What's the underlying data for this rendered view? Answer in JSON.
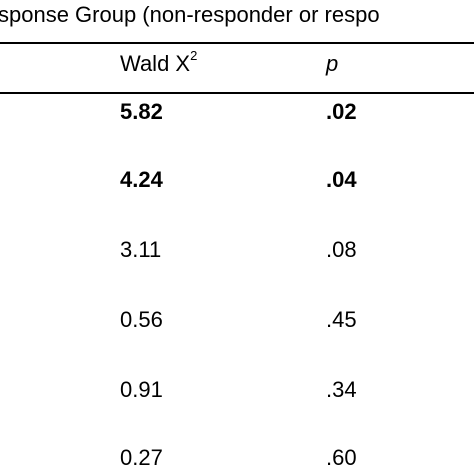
{
  "caption": "sponse Group (non-responder or respo",
  "headers": {
    "wald_base": "Wald X",
    "wald_sup": "2",
    "p": "p"
  },
  "rows": [
    {
      "wald": "5.82",
      "p": ".02",
      "bold": true
    },
    {
      "wald": "4.24",
      "p": ".04",
      "bold": true
    },
    {
      "wald": "3.11",
      "p": ".08",
      "bold": false
    },
    {
      "wald": "0.56",
      "p": ".45",
      "bold": false
    },
    {
      "wald": "0.91",
      "p": ".34",
      "bold": false
    },
    {
      "wald": "0.27",
      "p": ".60",
      "bold": false
    }
  ]
}
